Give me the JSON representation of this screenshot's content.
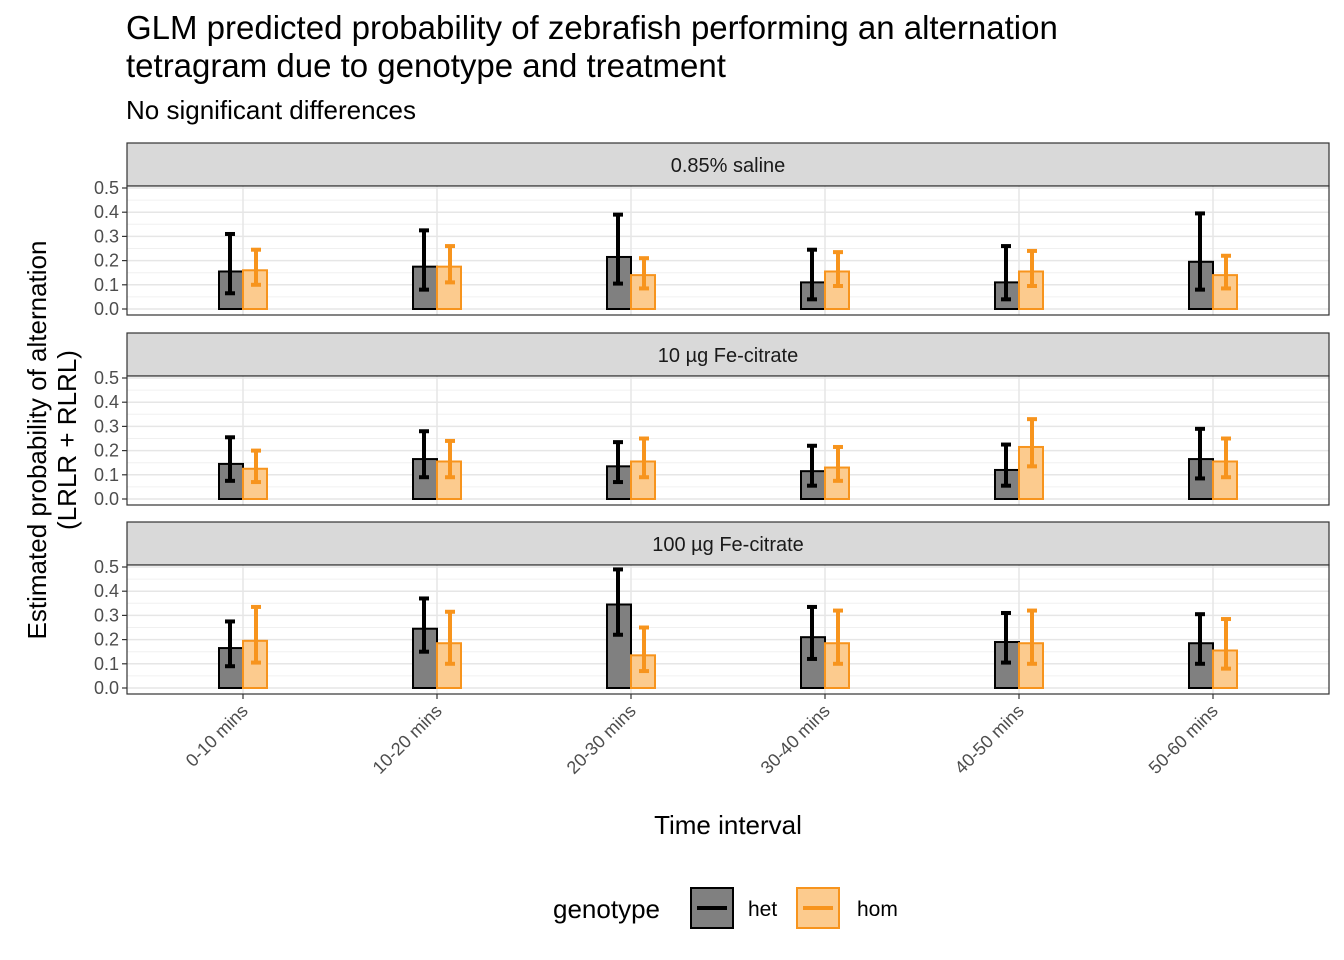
{
  "chart_data": {
    "type": "bar",
    "title_line1": "GLM predicted probability of zebrafish performing an alternation",
    "title_line2": "tetragram due to genotype and treatment",
    "subtitle": "No significant differences",
    "xlabel": "Time interval",
    "ylabel_line1": "Estimated probability of alternation",
    "ylabel_line2": "(LRLR + RLRL)",
    "categories": [
      "0-10 mins",
      "10-20 mins",
      "20-30 mins",
      "30-40 mins",
      "40-50 mins",
      "50-60 mins"
    ],
    "ylim": [
      0,
      0.5
    ],
    "yticks": [
      "0.0",
      "0.1",
      "0.2",
      "0.3",
      "0.4",
      "0.5"
    ],
    "grid": true,
    "legend": {
      "title": "genotype",
      "position": "bottom",
      "items": [
        {
          "label": "het",
          "color": "#000000",
          "fill": "#808080"
        },
        {
          "label": "hom",
          "color": "#f7941d",
          "fill": "#fccb8e"
        }
      ]
    },
    "facets": [
      {
        "label": "0.85% saline",
        "series": [
          {
            "name": "het",
            "values": [
              0.155,
              0.175,
              0.215,
              0.11,
              0.11,
              0.195
            ],
            "lower": [
              0.065,
              0.08,
              0.105,
              0.04,
              0.04,
              0.08
            ],
            "upper": [
              0.31,
              0.325,
              0.39,
              0.245,
              0.26,
              0.395
            ]
          },
          {
            "name": "hom",
            "values": [
              0.16,
              0.175,
              0.14,
              0.155,
              0.155,
              0.14
            ],
            "lower": [
              0.1,
              0.11,
              0.085,
              0.095,
              0.095,
              0.085
            ],
            "upper": [
              0.245,
              0.26,
              0.21,
              0.235,
              0.24,
              0.22
            ]
          }
        ]
      },
      {
        "label": "10 µg Fe-citrate",
        "series": [
          {
            "name": "het",
            "values": [
              0.145,
              0.165,
              0.135,
              0.115,
              0.12,
              0.165
            ],
            "lower": [
              0.075,
              0.09,
              0.07,
              0.055,
              0.055,
              0.085
            ],
            "upper": [
              0.255,
              0.28,
              0.235,
              0.22,
              0.225,
              0.29
            ]
          },
          {
            "name": "hom",
            "values": [
              0.125,
              0.155,
              0.155,
              0.13,
              0.215,
              0.155
            ],
            "lower": [
              0.07,
              0.09,
              0.09,
              0.075,
              0.135,
              0.09
            ],
            "upper": [
              0.2,
              0.24,
              0.25,
              0.215,
              0.33,
              0.25
            ]
          }
        ]
      },
      {
        "label": "100 µg Fe-citrate",
        "series": [
          {
            "name": "het",
            "values": [
              0.165,
              0.245,
              0.345,
              0.21,
              0.19,
              0.185
            ],
            "lower": [
              0.09,
              0.15,
              0.22,
              0.12,
              0.105,
              0.1
            ],
            "upper": [
              0.275,
              0.37,
              0.49,
              0.335,
              0.31,
              0.305
            ]
          },
          {
            "name": "hom",
            "values": [
              0.195,
              0.185,
              0.135,
              0.185,
              0.185,
              0.155
            ],
            "lower": [
              0.105,
              0.1,
              0.07,
              0.1,
              0.1,
              0.08
            ],
            "upper": [
              0.335,
              0.315,
              0.25,
              0.32,
              0.32,
              0.285
            ]
          }
        ]
      }
    ]
  }
}
